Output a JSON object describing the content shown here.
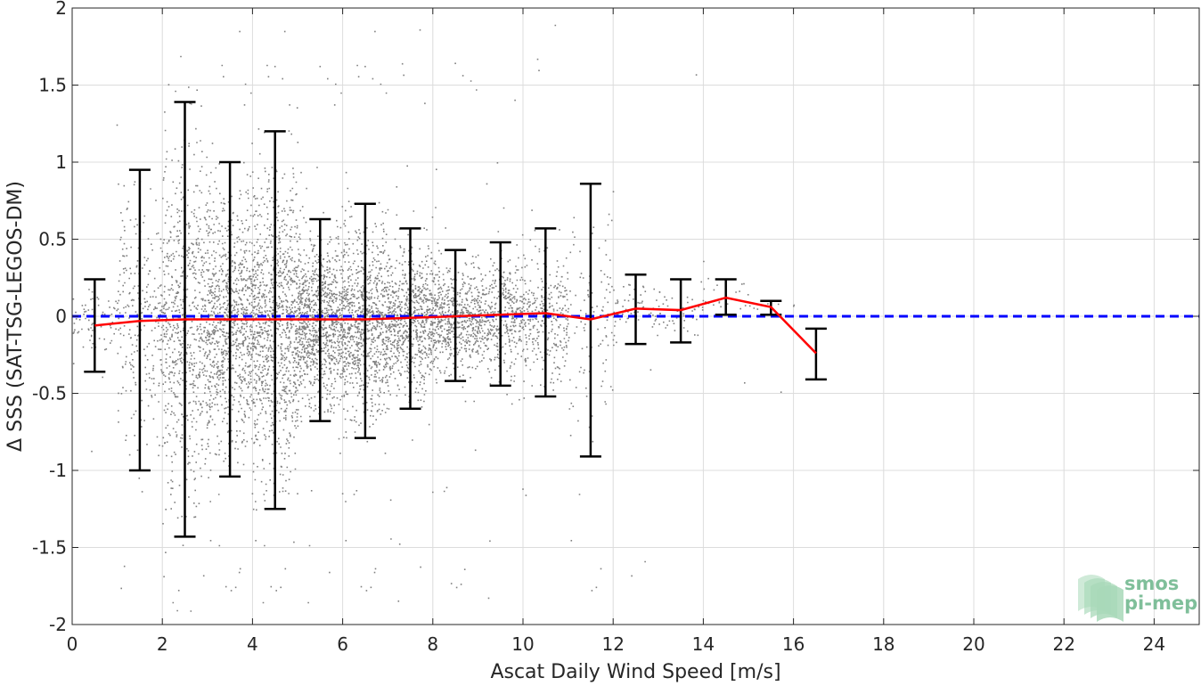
{
  "chart_data": {
    "type": "scatter",
    "title": "",
    "xlabel": "Ascat Daily Wind Speed [m/s]",
    "ylabel": "Δ SSS (SAT-TSG-LEGOS-DM)",
    "xlim": [
      0,
      25
    ],
    "ylim": [
      -2,
      2
    ],
    "grid": true,
    "x_ticks": [
      0,
      2,
      4,
      6,
      8,
      10,
      12,
      14,
      16,
      18,
      20,
      22,
      24
    ],
    "y_ticks": [
      2,
      1.5,
      1,
      0.5,
      0,
      -0.5,
      -1,
      -1.5,
      -2
    ],
    "y_tick_labels": [
      "2",
      "1.5",
      "1",
      "0.5",
      "0",
      "-0.5",
      "-1",
      "-1.5",
      "-2"
    ],
    "scatter": {
      "color": "#808080",
      "description": "dense cloud of individual match-up points, most concentrated between 2 and 11 m/s"
    },
    "zero_line": {
      "y": 0,
      "color": "#0000ff",
      "style": "dashed"
    },
    "binned_mean": {
      "color": "#ff0000",
      "x": [
        0.5,
        1.5,
        2.5,
        3.5,
        4.5,
        5.5,
        6.5,
        7.5,
        8.5,
        9.5,
        10.5,
        11.5,
        12.5,
        13.5,
        14.5,
        15.5,
        16.5
      ],
      "y": [
        -0.06,
        -0.03,
        -0.02,
        -0.02,
        -0.02,
        -0.02,
        -0.02,
        -0.01,
        0.0,
        0.01,
        0.02,
        -0.02,
        0.05,
        0.04,
        0.12,
        0.06,
        -0.24
      ]
    },
    "error_bars": {
      "color": "#000000",
      "x": [
        0.5,
        1.5,
        2.5,
        3.5,
        4.5,
        5.5,
        6.5,
        7.5,
        8.5,
        9.5,
        10.5,
        11.5,
        12.5,
        13.5,
        14.5,
        15.5,
        16.5
      ],
      "upper": [
        0.24,
        0.95,
        1.39,
        1.0,
        1.2,
        0.63,
        0.73,
        0.57,
        0.43,
        0.48,
        0.57,
        0.86,
        0.27,
        0.24,
        0.24,
        0.1,
        -0.08
      ],
      "lower": [
        -0.36,
        -1.0,
        -1.43,
        -1.04,
        -1.25,
        -0.68,
        -0.79,
        -0.6,
        -0.42,
        -0.45,
        -0.52,
        -0.91,
        -0.18,
        -0.17,
        0.01,
        0.01,
        -0.41
      ]
    }
  },
  "logo": {
    "line1": "smos",
    "line2": "pi-mep",
    "text_color": "#7fbf9a",
    "tile_color": "#a8d8b8"
  }
}
